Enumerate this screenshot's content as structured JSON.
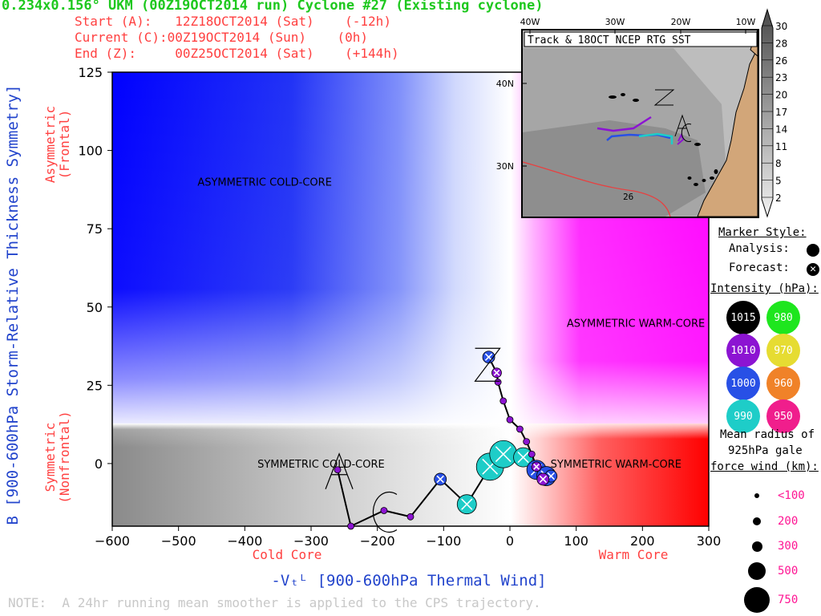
{
  "header": {
    "title": "0.234x0.156° UKM (00Z19OCT2014 run) Cyclone #27 (Existing cyclone)",
    "start_line": "Start (A):   12Z18OCT2014 (Sat)    (-12h)",
    "current_line": "Current (C):00Z19OCT2014 (Sun)    (0h)",
    "end_line": "End (Z):     00Z25OCT2014 (Sat)    (+144h)"
  },
  "note": "NOTE:  A 24hr running mean smoother is applied to the CPS trajectory.",
  "legend": {
    "marker_style_title": "Marker Style:",
    "analysis_label": "Analysis:",
    "forecast_label": "Forecast:",
    "intensity_title": "Intensity (hPa):",
    "intensity_swatches": [
      {
        "label": "1015",
        "color": "#000000"
      },
      {
        "label": "980",
        "color": "#1ee61e"
      },
      {
        "label": "1010",
        "color": "#8c14d2"
      },
      {
        "label": "970",
        "color": "#e6dc32"
      },
      {
        "label": "1000",
        "color": "#2850e6"
      },
      {
        "label": "960",
        "color": "#f08228"
      },
      {
        "label": "990",
        "color": "#1ecdc8"
      },
      {
        "label": "950",
        "color": "#f01e8c"
      }
    ],
    "radius_title_1": "Mean radius of",
    "radius_title_2": "925hPa gale",
    "radius_title_3": "force wind (km):",
    "radius_sizes": [
      {
        "label": "<100",
        "d": 6
      },
      {
        "label": "200",
        "d": 10
      },
      {
        "label": "300",
        "d": 13
      },
      {
        "label": "500",
        "d": 22
      },
      {
        "label": "750",
        "d": 32
      }
    ]
  },
  "chart_data": [
    {
      "type": "scatter",
      "title": "",
      "xlabel": "-Vₜᴸ [900-600hPa Thermal Wind]",
      "ylabel": "B [900-600hPa Storm-Relative Thickness Symmetry]",
      "xlim": [
        -600,
        300
      ],
      "ylim": [
        -20,
        125
      ],
      "xticks": [
        -600,
        -500,
        -400,
        -300,
        -200,
        -100,
        0,
        100,
        200,
        300
      ],
      "yticks": [
        0,
        25,
        50,
        75,
        100,
        125
      ],
      "x_side_labels": {
        "cold": "Cold Core",
        "warm": "Warm Core"
      },
      "y_side_labels": {
        "asym_1": "Asymmetric",
        "asym_2": "(Frontal)",
        "sym_1": "Symmetric",
        "sym_2": "(Nonfrontal)"
      },
      "region_labels": [
        {
          "text": "ASYMMETRIC COLD-CORE",
          "x": -370,
          "y": 90
        },
        {
          "text": "ASYMMETRIC WARM-CORE",
          "x": 190,
          "y": 45
        },
        {
          "text": "SYMMETRIC COLD-CORE",
          "x": -285,
          "y": 0
        },
        {
          "text": "SYMMETRIC WARM-CORE",
          "x": 160,
          "y": 0
        }
      ],
      "track_labels": {
        "start": "A",
        "current": "C",
        "end": "Z"
      },
      "series": [
        {
          "points": [
            {
              "x": -260,
              "y": -2,
              "p": 1010,
              "r": 100,
              "fc": false
            },
            {
              "x": -240,
              "y": -20,
              "p": 1010,
              "r": 100,
              "fc": false
            },
            {
              "x": -190,
              "y": -15,
              "p": 1010,
              "r": 100,
              "fc": true
            },
            {
              "x": -150,
              "y": -17,
              "p": 1010,
              "r": 100,
              "fc": true
            },
            {
              "x": -105,
              "y": -5,
              "p": 1000,
              "r": 300,
              "fc": true
            },
            {
              "x": -65,
              "y": -13,
              "p": 990,
              "r": 500,
              "fc": true
            },
            {
              "x": -30,
              "y": -1,
              "p": 990,
              "r": 750,
              "fc": true
            },
            {
              "x": -10,
              "y": 3,
              "p": 990,
              "r": 750,
              "fc": true
            },
            {
              "x": 20,
              "y": 2,
              "p": 990,
              "r": 500,
              "fc": true
            },
            {
              "x": 40,
              "y": -2,
              "p": 1000,
              "r": 500,
              "fc": true
            },
            {
              "x": 55,
              "y": -4,
              "p": 1000,
              "r": 500,
              "fc": true
            },
            {
              "x": 62,
              "y": -4,
              "p": 1000,
              "r": 300,
              "fc": true
            },
            {
              "x": 50,
              "y": -5,
              "p": 1010,
              "r": 300,
              "fc": true
            },
            {
              "x": 40,
              "y": -1,
              "p": 1010,
              "r": 200,
              "fc": true
            },
            {
              "x": 33,
              "y": 3,
              "p": 1010,
              "r": 100,
              "fc": true
            },
            {
              "x": 25,
              "y": 7,
              "p": 1010,
              "r": 100,
              "fc": true
            },
            {
              "x": 15,
              "y": 11,
              "p": 1010,
              "r": 100,
              "fc": true
            },
            {
              "x": 0,
              "y": 14,
              "p": 1010,
              "r": 100,
              "fc": true
            },
            {
              "x": -10,
              "y": 20,
              "p": 1010,
              "r": 100,
              "fc": true
            },
            {
              "x": -18,
              "y": 26,
              "p": 1010,
              "r": 100,
              "fc": true
            },
            {
              "x": -20,
              "y": 29,
              "p": 1010,
              "r": 200,
              "fc": true
            },
            {
              "x": -32,
              "y": 34,
              "p": 1000,
              "r": 300,
              "fc": true
            }
          ]
        }
      ]
    },
    {
      "type": "map",
      "title": "Track & 18OCT NCEP RTG SST",
      "lon_ticks": [
        "40W",
        "30W",
        "20W",
        "10W"
      ],
      "lat_ticks": [
        "40N",
        "30N"
      ],
      "sst_contour_label": "26",
      "colorbar_ticks": [
        30,
        28,
        26,
        23,
        20,
        17,
        14,
        11,
        8,
        5,
        2
      ]
    }
  ]
}
